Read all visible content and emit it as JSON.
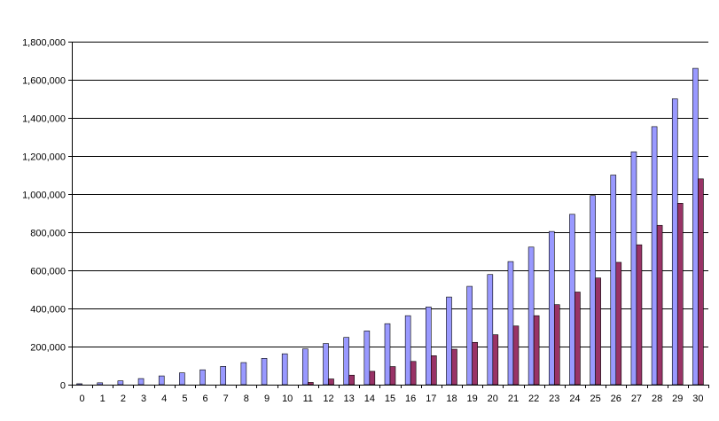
{
  "chart_data": {
    "type": "bar",
    "title": "",
    "xlabel": "",
    "ylabel": "",
    "ylim": [
      0,
      1800000
    ],
    "yticks": [
      0,
      200000,
      400000,
      600000,
      800000,
      1000000,
      1200000,
      1400000,
      1600000,
      1800000
    ],
    "ytick_labels": [
      "0",
      "200,000",
      "400,000",
      "600,000",
      "800,000",
      "1,000,000",
      "1,200,000",
      "1,400,000",
      "1,600,000",
      "1,800,000"
    ],
    "grid": "horizontal",
    "legend": "none",
    "categories": [
      "0",
      "1",
      "2",
      "3",
      "4",
      "5",
      "6",
      "7",
      "8",
      "9",
      "10",
      "11",
      "12",
      "13",
      "14",
      "15",
      "16",
      "17",
      "18",
      "19",
      "20",
      "21",
      "22",
      "23",
      "24",
      "25",
      "26",
      "27",
      "28",
      "29",
      "30"
    ],
    "series": [
      {
        "color": "#9999ff",
        "values": [
          5000,
          10000,
          20000,
          32000,
          46000,
          62000,
          78000,
          96000,
          116000,
          138000,
          162000,
          188000,
          216000,
          248000,
          282000,
          320000,
          362000,
          408000,
          460000,
          516000,
          578000,
          646000,
          722000,
          804000,
          894000,
          992000,
          1100000,
          1222000,
          1354000,
          1500000,
          1660000
        ]
      },
      {
        "color": "#993366",
        "values": [
          0,
          0,
          0,
          0,
          0,
          0,
          0,
          0,
          0,
          0,
          0,
          12000,
          30000,
          50000,
          70000,
          95000,
          122000,
          152000,
          186000,
          222000,
          262000,
          308000,
          362000,
          420000,
          486000,
          560000,
          642000,
          734000,
          836000,
          952000,
          1080000
        ]
      }
    ]
  }
}
